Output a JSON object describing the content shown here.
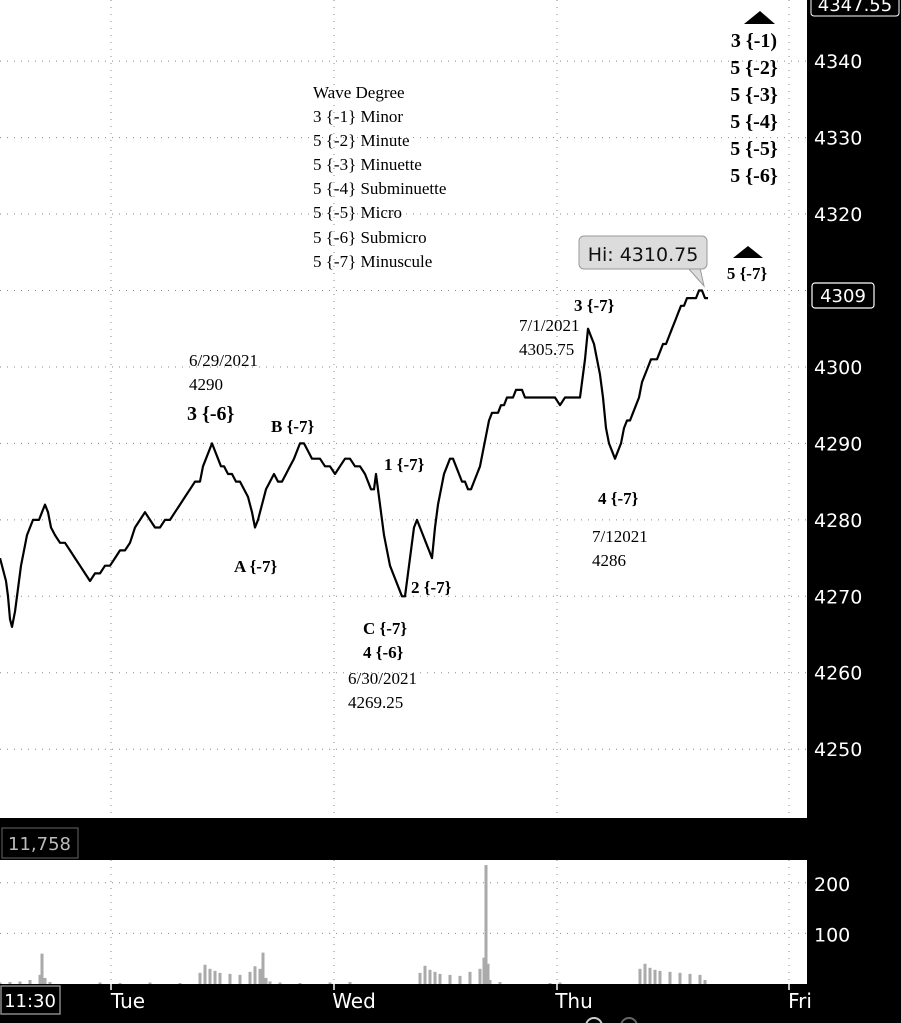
{
  "chart_data": [
    {
      "type": "candlestick-price",
      "title": "",
      "x_labels": [
        "Tue",
        "Wed",
        "Thu",
        "Fri"
      ],
      "y_ticks": [
        4250,
        4260,
        4270,
        4280,
        4290,
        4300,
        4310,
        4320,
        4330,
        4340
      ],
      "ylim": [
        4241,
        4348
      ],
      "grid": true,
      "top_price_label": "4347.55",
      "last_price": "4309",
      "high_callout": "Hi: 4310.75",
      "series": [
        {
          "name": "",
          "x": [
            0,
            2,
            4,
            6,
            8,
            10,
            12,
            15,
            18,
            21,
            24,
            27,
            30,
            33,
            36,
            39,
            42,
            45,
            48,
            51,
            55,
            60,
            65,
            70,
            75,
            80,
            85,
            90,
            95,
            100,
            105,
            110,
            115,
            120,
            125,
            130,
            135,
            140,
            145,
            150,
            155,
            160,
            165,
            170,
            175,
            180,
            185,
            190,
            195,
            200,
            203,
            206,
            209,
            212,
            215,
            218,
            221,
            224,
            228,
            232,
            236,
            240,
            244,
            248,
            252,
            255,
            258,
            262,
            266,
            270,
            274,
            278,
            282,
            286,
            290,
            294,
            297,
            300,
            304,
            308,
            312,
            316,
            320,
            325,
            330,
            335,
            340,
            345,
            350,
            355,
            360,
            365,
            368,
            371,
            374,
            376,
            378,
            380,
            382,
            384,
            387,
            390,
            393,
            396,
            399,
            402,
            405,
            408,
            411,
            414,
            417,
            420,
            423,
            426,
            429,
            432,
            435,
            438,
            441,
            444,
            447,
            450,
            453,
            456,
            459,
            462,
            465,
            468,
            471,
            474,
            477,
            480,
            483,
            486,
            489,
            492,
            495,
            498,
            501,
            504,
            507,
            510,
            513,
            516,
            519,
            522,
            525,
            530,
            535,
            540,
            545,
            550,
            555,
            560,
            565,
            570,
            575,
            580,
            585,
            588,
            591,
            594,
            597,
            600,
            603,
            606,
            609,
            612,
            615,
            618,
            621,
            624,
            627,
            630,
            633,
            636,
            639,
            642,
            645,
            648,
            651,
            654,
            657,
            660,
            663,
            666,
            669,
            672,
            675,
            678,
            681,
            684,
            687,
            690,
            693,
            696,
            699,
            702,
            705,
            708
          ],
          "values": [
            4275,
            4274,
            4273,
            4272,
            4270,
            4267,
            4266,
            4268,
            4271,
            4274,
            4276,
            4278,
            4279,
            4280,
            4280,
            4280,
            4281,
            4282,
            4281,
            4279,
            4278,
            4277,
            4277,
            4276,
            4275,
            4274,
            4273,
            4272,
            4273,
            4273,
            4274,
            4274,
            4275,
            4276,
            4276,
            4277,
            4279,
            4280,
            4281,
            4280,
            4279,
            4279,
            4280,
            4280,
            4281,
            4282,
            4283,
            4284,
            4285,
            4285,
            4287,
            4288,
            4289,
            4290,
            4289,
            4288,
            4287,
            4287,
            4286,
            4286,
            4285,
            4285,
            4284,
            4283,
            4281,
            4279,
            4280,
            4282,
            4284,
            4285,
            4286,
            4285,
            4285,
            4286,
            4287,
            4288,
            4289,
            4290,
            4290,
            4289,
            4288,
            4288,
            4288,
            4287,
            4287,
            4286,
            4287,
            4288,
            4288,
            4287,
            4287,
            4286,
            4285,
            4284,
            4284,
            4286,
            4284,
            4282,
            4280,
            4278,
            4276,
            4274,
            4273,
            4272,
            4271,
            4270,
            4270,
            4273,
            4276,
            4279,
            4280,
            4279,
            4278,
            4277,
            4276,
            4275,
            4279,
            4282,
            4284,
            4286,
            4287,
            4288,
            4288,
            4287,
            4286,
            4285,
            4285,
            4284,
            4284,
            4285,
            4286,
            4287,
            4289,
            4291,
            4293,
            4294,
            4294,
            4294,
            4295,
            4295,
            4296,
            4296,
            4296,
            4297,
            4297,
            4297,
            4296,
            4296,
            4296,
            4296,
            4296,
            4296,
            4296,
            4295,
            4296,
            4296,
            4296,
            4296,
            4301,
            4305,
            4304,
            4303,
            4301,
            4299,
            4296,
            4292,
            4290,
            4289,
            4288,
            4289,
            4290,
            4292,
            4293,
            4293,
            4294,
            4295,
            4296,
            4298,
            4299,
            4300,
            4301,
            4301,
            4301,
            4302,
            4303,
            4303,
            4304,
            4305,
            4306,
            4307,
            4308,
            4308,
            4309,
            4309,
            4309,
            4309,
            4310,
            4310,
            4309,
            4309
          ]
        }
      ]
    },
    {
      "type": "bar",
      "title": "",
      "y_ticks": [
        100,
        200
      ],
      "ylim": [
        0,
        245
      ],
      "volume_readout": "11,758",
      "series": [
        {
          "name": "",
          "x": [
            0,
            10,
            20,
            30,
            40,
            42,
            45,
            50,
            100,
            120,
            150,
            180,
            200,
            205,
            210,
            215,
            220,
            230,
            240,
            250,
            255,
            260,
            263,
            266,
            270,
            280,
            300,
            330,
            350,
            420,
            425,
            430,
            435,
            440,
            450,
            460,
            470,
            480,
            484,
            486,
            488,
            490,
            500,
            550,
            560,
            640,
            645,
            650,
            655,
            660,
            670,
            680,
            690,
            700,
            705
          ],
          "values": [
            3,
            4,
            5,
            8,
            18,
            60,
            12,
            4,
            3,
            2,
            3,
            2,
            22,
            38,
            30,
            26,
            22,
            20,
            18,
            24,
            35,
            30,
            62,
            12,
            5,
            3,
            2,
            3,
            4,
            22,
            36,
            28,
            24,
            20,
            18,
            16,
            24,
            30,
            52,
            235,
            40,
            8,
            4,
            2,
            3,
            30,
            40,
            32,
            28,
            26,
            24,
            22,
            20,
            18,
            8
          ]
        }
      ]
    }
  ],
  "annotations": {
    "legend_title": "Wave Degree",
    "legend_items": [
      "3 {-1} Minor",
      "5 {-2} Minute",
      "5 {-3} Minuette",
      "5 {-4} Subminuette",
      "5 {-5} Micro",
      "5 {-6} Submicro",
      "5 {-7} Minuscule"
    ],
    "right_stack": [
      "3 {-1)",
      "5 {-2}",
      "5 {-3}",
      "5 {-4}",
      "5 {-5}",
      "5 {-6}"
    ],
    "right_small": "5 {-7}",
    "date_1": "6/29/2021",
    "price_1": "4290",
    "wave_3_6": "3 {-6}",
    "wave_B_7": "B {-7}",
    "wave_A_7": "A {-7}",
    "wave_1_7": "1 {-7}",
    "wave_2_7": "2 {-7}",
    "wave_C_7": "C {-7}",
    "wave_4_6": "4 {-6}",
    "date_2": "6/30/2021",
    "price_2": "4269.25",
    "wave_3_7": "3 {-7}",
    "date_3": "7/1/2021",
    "price_3": "4305.75",
    "wave_4_7": "4 {-7}",
    "date_4": "7/12021",
    "price_4": "4286"
  },
  "time_readout": "11:30",
  "colors": {
    "background": "#ffffff",
    "frame": "#000000",
    "axis_text": "#ffffff",
    "price_line": "#000000",
    "volume_bars": "#aaaaaa",
    "callout_bg": "#dcdcdc"
  }
}
